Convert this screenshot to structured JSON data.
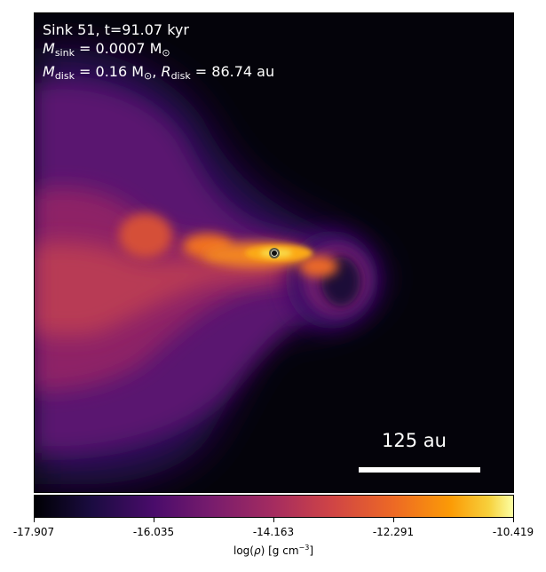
{
  "annotation": {
    "line1": "Sink 51, t=91.07 kyr",
    "msink_symbol": "M",
    "msink_sub": "sink",
    "msink_value": " = 0.0007 M",
    "msink_sun": "⊙",
    "mdisk_symbol": "M",
    "mdisk_sub": "disk",
    "mdisk_value": " = 0.16 M",
    "mdisk_sun": "⊙",
    "rdisk_sep": ", ",
    "rdisk_symbol": "R",
    "rdisk_sub": "disk",
    "rdisk_value": " = 86.74 au"
  },
  "scale_bar": {
    "label": "125 au"
  },
  "colorbar": {
    "colormap": "inferno",
    "ticks": [
      "-17.907",
      "-16.035",
      "-14.163",
      "-12.291",
      "-10.419"
    ],
    "label_prefix": "log(",
    "label_rho": "ρ",
    "label_suffix": ") [g cm",
    "label_exp": "−3",
    "label_close": "]"
  },
  "colors": {
    "background_low_density": "#04030a",
    "text": "#ffffff"
  }
}
